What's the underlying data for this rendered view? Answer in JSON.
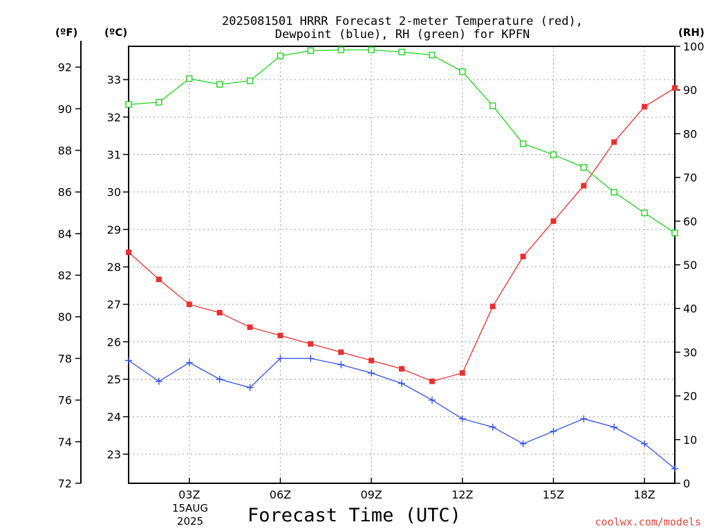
{
  "chart_data": {
    "type": "line",
    "title_line1": "2025081501 HRRR Forecast 2-meter Temperature (red),",
    "title_line2": "Dewpoint (blue), RH (green) for KPFN",
    "xlabel": "Forecast Time (UTC)",
    "unit_labels": {
      "f": "(ºF)",
      "c": "(ºC)",
      "rh": "(RH)"
    },
    "date_label": {
      "line1": "15AUG",
      "line2": "2025"
    },
    "x": [
      1,
      2,
      3,
      4,
      5,
      6,
      7,
      8,
      9,
      10,
      11,
      12,
      13,
      14,
      15,
      16,
      17,
      18,
      19
    ],
    "xlim": [
      1,
      19
    ],
    "x_ticks": [
      {
        "x": 3,
        "label": "03Z"
      },
      {
        "x": 6,
        "label": "06Z"
      },
      {
        "x": 9,
        "label": "09Z"
      },
      {
        "x": 12,
        "label": "12Z"
      },
      {
        "x": 15,
        "label": "15Z"
      },
      {
        "x": 18,
        "label": "18Z"
      }
    ],
    "y_left_f": {
      "lim": [
        72,
        93
      ],
      "ticks": [
        72,
        74,
        76,
        78,
        80,
        82,
        84,
        86,
        88,
        90,
        92
      ]
    },
    "y_left_c": {
      "ticks": [
        23,
        24,
        25,
        26,
        27,
        28,
        29,
        30,
        31,
        32,
        33
      ]
    },
    "y_right_rh": {
      "lim": [
        0,
        100
      ],
      "ticks": [
        0,
        10,
        20,
        30,
        40,
        50,
        60,
        70,
        80,
        90,
        100
      ]
    },
    "grid": true,
    "series": [
      {
        "name": "Temperature",
        "axis": "F",
        "color": "#e8312f",
        "marker": "filled-square",
        "values": [
          83.1,
          81.8,
          80.6,
          80.2,
          79.5,
          79.1,
          78.7,
          78.3,
          77.9,
          77.5,
          76.9,
          77.3,
          80.5,
          82.9,
          84.6,
          86.3,
          88.4,
          90.1,
          91.0
        ]
      },
      {
        "name": "Dewpoint",
        "axis": "F",
        "color": "#2d4fe8",
        "marker": "plus",
        "values": [
          77.9,
          76.9,
          77.8,
          77.0,
          76.6,
          78.0,
          78.0,
          77.7,
          77.3,
          76.8,
          76.0,
          75.1,
          74.7,
          73.9,
          74.5,
          75.1,
          74.7,
          73.9,
          72.7
        ]
      },
      {
        "name": "RH",
        "axis": "RH",
        "color": "#22d122",
        "marker": "open-square",
        "values": [
          86.7,
          87.2,
          92.6,
          91.3,
          92.1,
          97.8,
          99.0,
          99.2,
          99.2,
          98.7,
          98.0,
          94.2,
          86.4,
          77.7,
          75.2,
          72.3,
          66.6,
          61.9,
          57.3
        ]
      }
    ],
    "watermark": "coolwx.com/models"
  }
}
